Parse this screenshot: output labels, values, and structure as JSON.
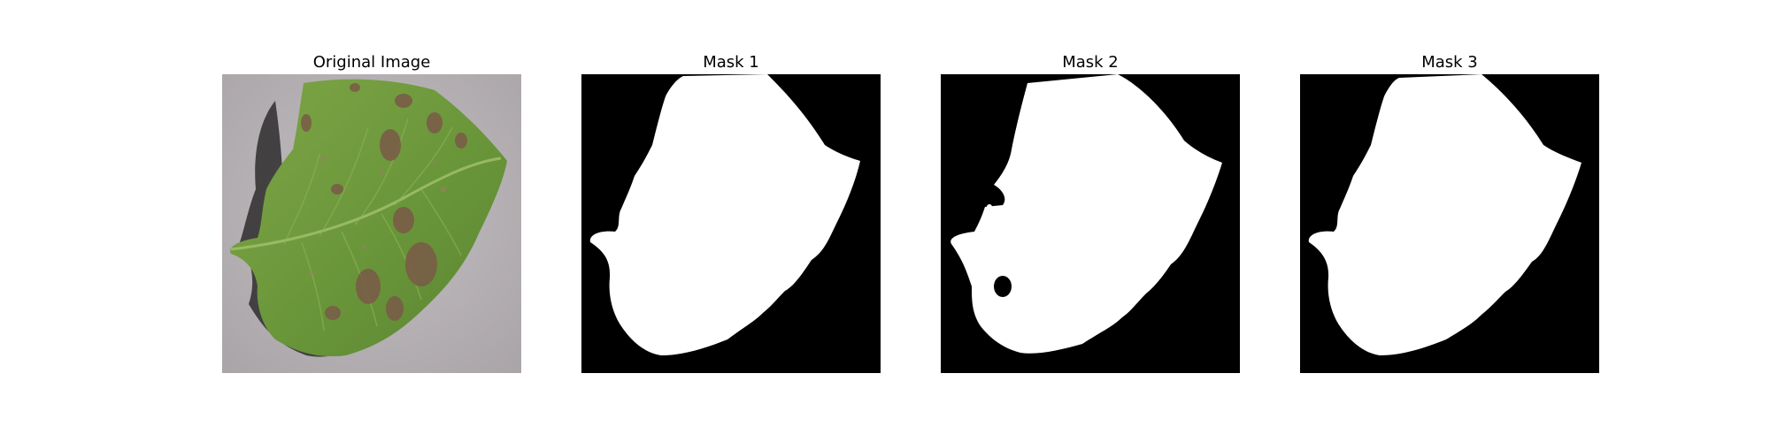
{
  "figure": {
    "panels": [
      {
        "title": "Original Image",
        "kind": "photo",
        "subject": "leaf-photo"
      },
      {
        "title": "Mask 1",
        "kind": "mask",
        "subject": "leaf-mask"
      },
      {
        "title": "Mask 2",
        "kind": "mask",
        "subject": "leaf-mask"
      },
      {
        "title": "Mask 3",
        "kind": "mask",
        "subject": "leaf-mask"
      }
    ],
    "colors": {
      "mask_background": "#000000",
      "mask_foreground": "#ffffff",
      "photo_background": "#b6b1b4",
      "leaf_green": "#6f9a3c",
      "leaf_dark": "#3f6321",
      "lesion_brown": "#7a5a48",
      "shadow": "#2f2d2e"
    }
  }
}
